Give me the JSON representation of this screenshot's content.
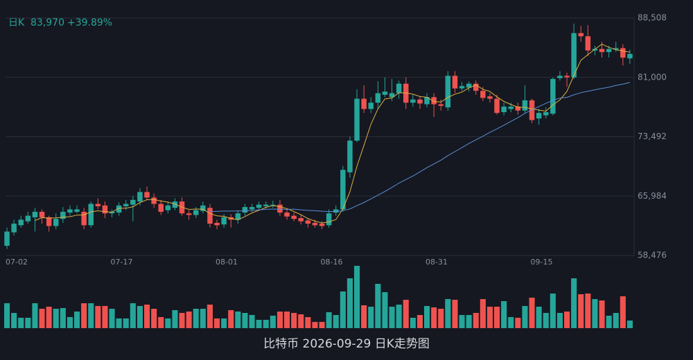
{
  "chart_data": {
    "type": "candlestick",
    "title": "比特币 2026-09-29 日K走势图",
    "period": "日K",
    "last_price": "83,970",
    "change": "+39.89%",
    "up_color": "#26a69a",
    "down_color": "#ef5350",
    "categories": [
      "07-02",
      null,
      null,
      null,
      null,
      null,
      null,
      null,
      null,
      null,
      null,
      null,
      null,
      null,
      null,
      "07-17",
      null,
      null,
      null,
      null,
      null,
      null,
      null,
      null,
      null,
      null,
      null,
      null,
      null,
      null,
      "08-01",
      null,
      null,
      null,
      null,
      null,
      null,
      null,
      null,
      null,
      null,
      null,
      null,
      null,
      null,
      "08-16",
      null,
      null,
      null,
      null,
      null,
      null,
      null,
      null,
      null,
      null,
      null,
      null,
      null,
      null,
      "08-31",
      null,
      null,
      null,
      null,
      null,
      null,
      null,
      null,
      null,
      null,
      null,
      null,
      null,
      null,
      "09-15",
      null,
      null,
      null,
      null,
      null,
      null,
      null,
      null,
      null,
      null,
      null,
      null,
      null,
      null
    ],
    "open": [
      59700,
      61400,
      62300,
      62800,
      63300,
      64000,
      63300,
      62200,
      63100,
      63900,
      64000,
      64000,
      62300,
      65000,
      64800,
      63800,
      63900,
      64700,
      64900,
      65300,
      66500,
      65800,
      65000,
      64200,
      64500,
      65300,
      63800,
      63600,
      64100,
      64500,
      62600,
      62400,
      63300,
      63000,
      63900,
      64300,
      64500,
      64700,
      64800,
      64900,
      63900,
      63500,
      63200,
      62900,
      62600,
      62500,
      62300,
      63900,
      64300,
      69000,
      73000,
      78300,
      77000,
      77800,
      78800,
      78500,
      79000,
      80200,
      77800,
      78200,
      77600,
      78500,
      77600,
      77200,
      81200,
      79600,
      79700,
      80200,
      79300,
      78600,
      78300,
      76600,
      77000,
      77300,
      76800,
      78100,
      75800,
      76200,
      76400,
      80900,
      81200,
      81000,
      86600,
      86200,
      84400,
      84600,
      84200,
      84500,
      84700,
      83400
    ],
    "high": [
      62000,
      63000,
      63500,
      64000,
      64500,
      64300,
      63500,
      63800,
      64600,
      64800,
      64800,
      64500,
      65300,
      65700,
      65300,
      64300,
      65200,
      65500,
      66000,
      67000,
      67200,
      66300,
      65500,
      65200,
      65700,
      65800,
      64200,
      64600,
      65300,
      65000,
      63000,
      63700,
      63700,
      64200,
      65000,
      65000,
      65300,
      65300,
      65400,
      65500,
      64300,
      63900,
      63600,
      63200,
      63000,
      62800,
      64300,
      64800,
      69800,
      73500,
      79500,
      80000,
      78500,
      80500,
      81000,
      80800,
      80600,
      81000,
      78800,
      78600,
      79000,
      79000,
      78200,
      81800,
      81800,
      80400,
      80500,
      80600,
      79800,
      79000,
      78800,
      77800,
      77800,
      77800,
      80000,
      78300,
      77000,
      77200,
      81000,
      81800,
      81600,
      87800,
      87500,
      87600,
      85000,
      85500,
      85000,
      85500,
      85200,
      84500
    ],
    "low": [
      59300,
      61000,
      62000,
      62500,
      61500,
      62500,
      61500,
      61800,
      62600,
      63500,
      63800,
      61800,
      62000,
      64300,
      63200,
      63300,
      63500,
      64200,
      62800,
      64800,
      65500,
      64500,
      63600,
      63800,
      64200,
      63500,
      63000,
      63200,
      63800,
      62000,
      61800,
      62000,
      62000,
      62500,
      63500,
      64000,
      64200,
      64400,
      64500,
      63500,
      63000,
      62800,
      62400,
      62000,
      62000,
      61800,
      62000,
      63500,
      64000,
      68300,
      72800,
      76500,
      76500,
      77000,
      78500,
      78000,
      78300,
      77000,
      77300,
      77000,
      77200,
      76000,
      76800,
      76800,
      79000,
      79300,
      79200,
      78800,
      78000,
      77800,
      76300,
      76200,
      76600,
      76300,
      76500,
      75200,
      75000,
      75800,
      76200,
      80600,
      79800,
      80800,
      85500,
      83700,
      83800,
      83500,
      83500,
      84200,
      82500,
      82700
    ],
    "close": [
      61500,
      62500,
      63000,
      63500,
      64000,
      63300,
      62200,
      63100,
      64000,
      64300,
      64300,
      62300,
      65000,
      64700,
      63800,
      64000,
      64800,
      65000,
      65500,
      66500,
      65800,
      65000,
      64000,
      64800,
      65300,
      63800,
      63600,
      64200,
      64800,
      62500,
      62300,
      63300,
      63000,
      63800,
      64600,
      64600,
      64900,
      64900,
      64900,
      63900,
      63400,
      63100,
      62800,
      62500,
      62300,
      62200,
      63800,
      64300,
      69300,
      73000,
      78300,
      77000,
      77800,
      79000,
      79200,
      79000,
      80200,
      77800,
      78200,
      77700,
      78500,
      77600,
      77400,
      81200,
      79600,
      79900,
      80200,
      79300,
      78400,
      78300,
      76500,
      77300,
      77300,
      76800,
      78100,
      75600,
      76500,
      76600,
      80800,
      81200,
      81000,
      86600,
      86200,
      84400,
      84600,
      84200,
      84600,
      84700,
      83500,
      83970
    ],
    "volume": [
      36,
      22,
      15,
      15,
      36,
      28,
      31,
      28,
      29,
      16,
      24,
      36,
      36,
      32,
      32,
      28,
      14,
      14,
      36,
      32,
      34,
      28,
      16,
      14,
      26,
      22,
      24,
      28,
      28,
      34,
      14,
      14,
      26,
      24,
      22,
      19,
      12,
      12,
      18,
      24,
      24,
      22,
      20,
      16,
      9,
      9,
      23,
      19,
      53,
      72,
      90,
      33,
      31,
      64,
      52,
      31,
      34,
      41,
      15,
      19,
      32,
      30,
      28,
      42,
      41,
      19,
      19,
      22,
      42,
      31,
      31,
      39,
      16,
      15,
      32,
      44,
      31,
      22,
      50,
      22,
      24,
      72,
      49,
      50,
      42,
      40,
      18,
      22,
      46,
      11
    ],
    "ma_lines": [
      {
        "color": "#e0b341",
        "values": [
          null,
          null,
          null,
          null,
          62900,
          63260,
          63200,
          63220,
          63320,
          63380,
          63580,
          63600,
          63980,
          64120,
          64020,
          63960,
          64460,
          64460,
          64620,
          65160,
          65520,
          65560,
          65360,
          65220,
          64980,
          64580,
          64300,
          64340,
          64340,
          63780,
          63480,
          63420,
          63180,
          62980,
          63400,
          63860,
          64180,
          64560,
          64780,
          64640,
          64400,
          64040,
          63620,
          63140,
          62820,
          62580,
          62720,
          63020,
          64380,
          66520,
          69740,
          72380,
          75080,
          77020,
          78260,
          78400,
          79040,
          79040,
          78880,
          78580,
          78480,
          77960,
          77880,
          78480,
          78860,
          79140,
          79660,
          80040,
          79480,
          79220,
          78540,
          77960,
          77560,
          77240,
          77200,
          77020,
          76860,
          76720,
          77520,
          78140,
          79220,
          81240,
          83160,
          83880,
          84560,
          85200,
          84800,
          84500,
          84320,
          84190
        ]
      },
      {
        "color": "#5b8fd6",
        "values": [
          null,
          null,
          null,
          null,
          null,
          null,
          null,
          null,
          null,
          null,
          null,
          null,
          null,
          null,
          null,
          null,
          null,
          null,
          null,
          null,
          null,
          null,
          null,
          null,
          null,
          null,
          null,
          null,
          null,
          64040,
          64060,
          64090,
          64090,
          64100,
          64120,
          64160,
          64250,
          64310,
          64340,
          64330,
          64300,
          64330,
          64250,
          64180,
          64130,
          64070,
          64040,
          64010,
          64140,
          64360,
          64770,
          65170,
          65630,
          66110,
          66570,
          67080,
          67630,
          68080,
          68530,
          69040,
          69580,
          70050,
          70530,
          71110,
          71610,
          72120,
          72630,
          73110,
          73560,
          74040,
          74480,
          74950,
          75440,
          75910,
          76440,
          76890,
          77310,
          77720,
          78100,
          78380,
          78470,
          78790,
          79070,
          79250,
          79430,
          79600,
          79750,
          79980,
          80150,
          80360
        ]
      }
    ],
    "ylim": [
      58476,
      88508
    ],
    "yticks": [
      {
        "value": 58476,
        "label": "58,476"
      },
      {
        "value": 65984,
        "label": "65,984"
      },
      {
        "value": 73492,
        "label": "73,492"
      },
      {
        "value": 81000,
        "label": "81,000"
      },
      {
        "value": 88508,
        "label": "88,508"
      }
    ],
    "grid": true
  }
}
